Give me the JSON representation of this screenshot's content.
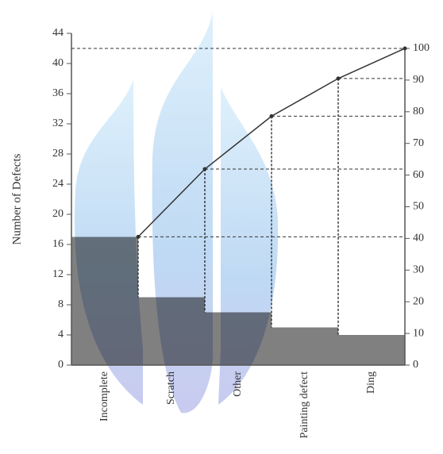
{
  "chart_data": {
    "type": "bar",
    "ylabel": "Number of Defects",
    "categories": [
      "Incomplete",
      "Scratch",
      "Other",
      "Painting defect",
      "Ding"
    ],
    "values": [
      17,
      9,
      7,
      5,
      4
    ],
    "color": "#808080",
    "line": {
      "values": [
        40.5,
        61.9,
        78.6,
        90.5,
        100
      ],
      "axis": "y2",
      "color": "#333333"
    },
    "ylim": [
      0,
      44
    ],
    "yticks": [
      0,
      4,
      8,
      12,
      16,
      20,
      24,
      28,
      32,
      36,
      40,
      44
    ],
    "y2lim": [
      0,
      100
    ],
    "y2ticks": [
      0,
      10,
      20,
      30,
      40,
      50,
      60,
      70,
      80,
      90,
      100
    ]
  }
}
